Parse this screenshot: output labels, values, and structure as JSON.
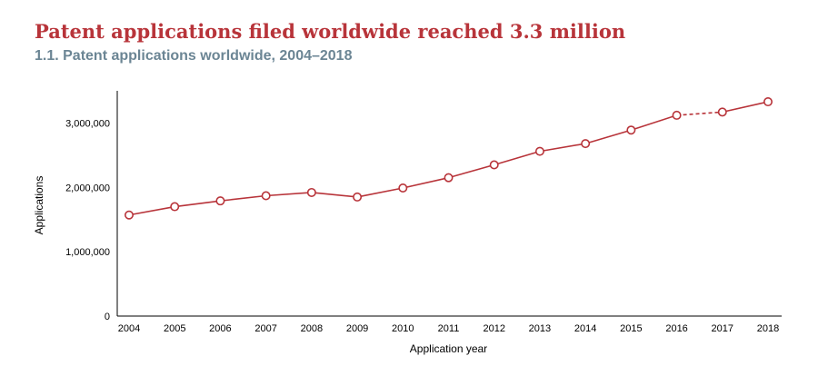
{
  "header": {
    "title": "Patent applications filed worldwide reached 3.3 million",
    "subtitle": "1.1. Patent applications worldwide, 2004–2018"
  },
  "colors": {
    "title": "#b8343a",
    "subtitle": "#6b8594",
    "series": "#b8343a",
    "axis": "#000000"
  },
  "chart_data": {
    "type": "line",
    "xlabel": "Application year",
    "ylabel": "Applications",
    "x": [
      "2004",
      "2005",
      "2006",
      "2007",
      "2008",
      "2009",
      "2010",
      "2011",
      "2012",
      "2013",
      "2014",
      "2015",
      "2016",
      "2017",
      "2018"
    ],
    "ylim": [
      0,
      3500000
    ],
    "yticks": [
      0,
      1000000,
      2000000,
      3000000
    ],
    "ytick_labels": [
      "0",
      "1,000,000",
      "2,000,000",
      "3,000,000"
    ],
    "grid": false,
    "series": [
      {
        "values": [
          1570000,
          1700000,
          1790000,
          1870000,
          1920000,
          1850000,
          1990000,
          2150000,
          2350000,
          2560000,
          2680000,
          2890000,
          3120000,
          3170000,
          3330000
        ],
        "estimated_from_index": 12
      }
    ]
  }
}
